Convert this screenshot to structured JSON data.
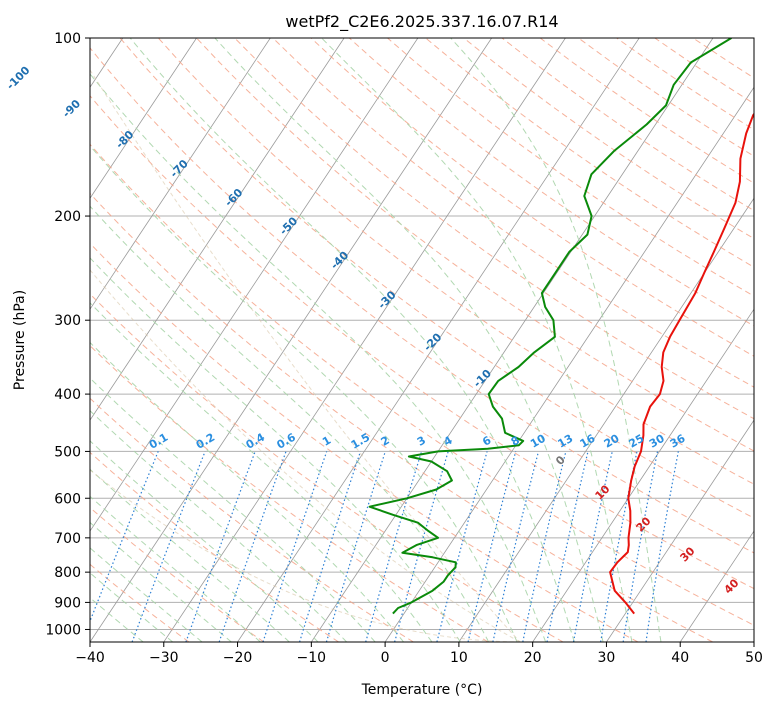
{
  "chart_data": {
    "type": "line",
    "title": "wetPf2_C2E6.2025.337.16.07.R14",
    "xlabel": "Temperature (°C)",
    "ylabel": "Pressure (hPa)",
    "xlim": [
      -40,
      50
    ],
    "ylim": [
      1050,
      100
    ],
    "y_scale": "log",
    "grid": true,
    "x_ticks": [
      "−40",
      "−30",
      "−20",
      "−10",
      "0",
      "10",
      "20",
      "30",
      "40",
      "50"
    ],
    "y_ticks": [
      "100",
      "200",
      "300",
      "400",
      "500",
      "600",
      "700",
      "800",
      "900",
      "1000"
    ],
    "colors": {
      "temperature": "#e8120c",
      "dewpoint": "#0a8a0a",
      "isotherm": "#9a9a9a",
      "dry_adiabat": "#f4a58a",
      "moist_adiabat": "#a8d4a8",
      "mixing_ratio": "#2b7fd4",
      "isotherm_label": "#1f6fb0",
      "adiabat_label": "#d42020",
      "mixing_label": "#2b8fe0"
    },
    "isotherm_labels": [
      "-100",
      "-90",
      "-80",
      "-70",
      "-60",
      "-50",
      "-40",
      "-30",
      "-20",
      "-10"
    ],
    "adiabat_labels": [
      "0",
      "10",
      "20",
      "30",
      "40"
    ],
    "mixing_ratio_labels": [
      "0.1",
      "0.2",
      "0.4",
      "0.6",
      "1",
      "1.5",
      "2",
      "3",
      "4",
      "6",
      "8",
      "10",
      "13",
      "16",
      "20",
      "25",
      "30",
      "36"
    ],
    "series": [
      {
        "name": "temperature",
        "points": [
          [
            31.2,
            940
          ],
          [
            29,
            900
          ],
          [
            26.5,
            860
          ],
          [
            24.2,
            800
          ],
          [
            24.3,
            770
          ],
          [
            24.8,
            740
          ],
          [
            24.3,
            720
          ],
          [
            23.6,
            700
          ],
          [
            22.5,
            660
          ],
          [
            21.4,
            630
          ],
          [
            20,
            600
          ],
          [
            18.8,
            560
          ],
          [
            18,
            530
          ],
          [
            17.5,
            500
          ],
          [
            16.4,
            470
          ],
          [
            15.4,
            450
          ],
          [
            14.7,
            420
          ],
          [
            14.9,
            400
          ],
          [
            14.2,
            380
          ],
          [
            12.7,
            360
          ],
          [
            11.6,
            340
          ],
          [
            11.1,
            320
          ],
          [
            10.9,
            300
          ],
          [
            10.6,
            270
          ],
          [
            10,
            250
          ],
          [
            9.4,
            230
          ],
          [
            8.7,
            210
          ],
          [
            7.9,
            190
          ],
          [
            6.6,
            175
          ],
          [
            4.6,
            160
          ],
          [
            3.1,
            145
          ],
          [
            2.4,
            135
          ],
          [
            2.8,
            125
          ],
          [
            4.6,
            115
          ],
          [
            4.7,
            108
          ],
          [
            3.2,
            100
          ]
        ]
      },
      {
        "name": "dewpoint",
        "points": [
          [
            -1.5,
            940
          ],
          [
            -1.3,
            920
          ],
          [
            0,
            900
          ],
          [
            1.8,
            860
          ],
          [
            2.5,
            830
          ],
          [
            2.5,
            810
          ],
          [
            2.8,
            785
          ],
          [
            2.4,
            770
          ],
          [
            -1.2,
            755
          ],
          [
            -5.7,
            742
          ],
          [
            -4.5,
            720
          ],
          [
            -2.2,
            700
          ],
          [
            -4.3,
            680
          ],
          [
            -6.3,
            660
          ],
          [
            -10.4,
            640
          ],
          [
            -14.3,
            620
          ],
          [
            -10,
            600
          ],
          [
            -6.8,
            580
          ],
          [
            -5.5,
            560
          ],
          [
            -7,
            540
          ],
          [
            -10,
            520
          ],
          [
            -13.5,
            510
          ],
          [
            -10,
            500
          ],
          [
            -3.5,
            495
          ],
          [
            0.4,
            488
          ],
          [
            0.6,
            480
          ],
          [
            -2.6,
            465
          ],
          [
            -4.3,
            440
          ],
          [
            -6.6,
            420
          ],
          [
            -8.3,
            400
          ],
          [
            -8.2,
            380
          ],
          [
            -6.7,
            360
          ],
          [
            -5.9,
            340
          ],
          [
            -4.5,
            320
          ],
          [
            -6.2,
            300
          ],
          [
            -8.5,
            285
          ],
          [
            -10.2,
            270
          ],
          [
            -10.2,
            250
          ],
          [
            -10.2,
            230
          ],
          [
            -9.3,
            215
          ],
          [
            -10.4,
            200
          ],
          [
            -13.2,
            185
          ],
          [
            -14.2,
            170
          ],
          [
            -13.2,
            155
          ],
          [
            -11.2,
            140
          ],
          [
            -10.3,
            130
          ],
          [
            -11.1,
            120
          ],
          [
            -10.8,
            110
          ],
          [
            -7.5,
            100
          ]
        ]
      }
    ]
  }
}
